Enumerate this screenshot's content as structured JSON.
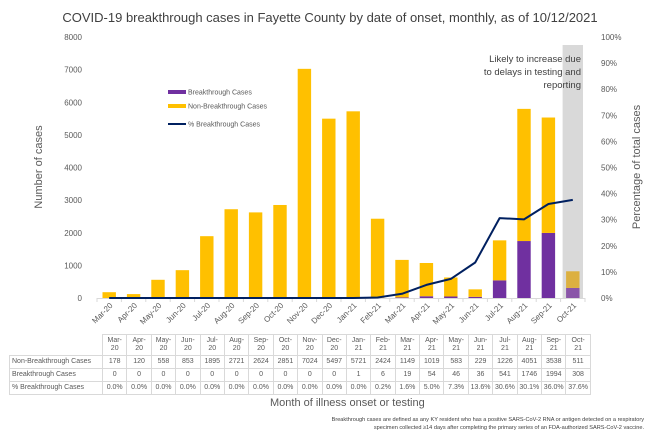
{
  "chart_data": {
    "type": "bar",
    "subtype": "stacked-bar-with-line-secondary-axis",
    "title": "COVID-19 breakthrough cases in Fayette County by date of onset, monthly, as of 10/12/2021",
    "xlabel": "Month of illness onset or testing",
    "ylabel": "Number of cases",
    "y2label": "Percentage of total cases",
    "ylim": [
      0,
      8000
    ],
    "y2lim": [
      0,
      100
    ],
    "yticks": [
      "0",
      "1000",
      "2000",
      "3000",
      "4000",
      "5000",
      "6000",
      "7000",
      "8000"
    ],
    "y2ticks": [
      "0%",
      "10%",
      "20%",
      "30%",
      "40%",
      "50%",
      "60%",
      "70%",
      "80%",
      "90%",
      "100%"
    ],
    "grid": false,
    "legend_position": "upper-left-inside",
    "categories": [
      "Mar-20",
      "Apr-20",
      "May-20",
      "Jun-20",
      "Jul-20",
      "Aug-20",
      "Sep-20",
      "Oct-20",
      "Nov-20",
      "Dec-20",
      "Jan-21",
      "Feb-21",
      "Mar-21",
      "Apr-21",
      "May-21",
      "Jun-21",
      "Jul-21",
      "Aug-21",
      "Sep-21",
      "Oct-21"
    ],
    "table_headers": [
      [
        "Mar-",
        "20"
      ],
      [
        "Apr-",
        "20"
      ],
      [
        "May-",
        "20"
      ],
      [
        "Jun-",
        "20"
      ],
      [
        "Jul-",
        "20"
      ],
      [
        "Aug-",
        "20"
      ],
      [
        "Sep-",
        "20"
      ],
      [
        "Oct-",
        "20"
      ],
      [
        "Nov-",
        "20"
      ],
      [
        "Dec-",
        "20"
      ],
      [
        "Jan-",
        "21"
      ],
      [
        "Feb-",
        "21"
      ],
      [
        "Mar-",
        "21"
      ],
      [
        "Apr-",
        "21"
      ],
      [
        "May-",
        "21"
      ],
      [
        "Jun-",
        "21"
      ],
      [
        "Jul-",
        "21"
      ],
      [
        "Aug-",
        "21"
      ],
      [
        "Sep-",
        "21"
      ],
      [
        "Oct-",
        "21"
      ]
    ],
    "series": [
      {
        "name": "Breakthrough Cases",
        "type": "bar",
        "axis": "left",
        "color": "#7030a0",
        "values": [
          0,
          0,
          0,
          0,
          0,
          0,
          0,
          0,
          0,
          0,
          1,
          6,
          19,
          54,
          46,
          36,
          541,
          1746,
          1994,
          308
        ],
        "labels": [
          "0",
          "0",
          "0",
          "0",
          "0",
          "0",
          "0",
          "0",
          "0",
          "0",
          "1",
          "6",
          "19",
          "54",
          "46",
          "36",
          "541",
          "1746",
          "1994",
          "308"
        ]
      },
      {
        "name": "Non-Breakthrough Cases",
        "type": "bar",
        "axis": "left",
        "color": "#ffc000",
        "values": [
          178,
          120,
          558,
          853,
          1895,
          2721,
          2624,
          2851,
          7024,
          5497,
          5721,
          2424,
          1149,
          1019,
          583,
          229,
          1226,
          4051,
          3538,
          511
        ],
        "labels": [
          "178",
          "120",
          "558",
          "853",
          "1895",
          "2721",
          "2624",
          "2851",
          "7024",
          "5497",
          "5721",
          "2424",
          "1149",
          "1019",
          "583",
          "229",
          "1226",
          "4051",
          "3538",
          "511"
        ]
      },
      {
        "name": "% Breakthrough Cases",
        "type": "line",
        "axis": "right",
        "color": "#002060",
        "values": [
          0,
          0,
          0,
          0,
          0,
          0,
          0,
          0,
          0,
          0,
          0,
          0.2,
          1.6,
          5.0,
          7.3,
          13.6,
          30.6,
          30.1,
          36.0,
          37.6
        ],
        "labels": [
          "0.0%",
          "0.0%",
          "0.0%",
          "0.0%",
          "0.0%",
          "0.0%",
          "0.0%",
          "0.0%",
          "0.0%",
          "0.0%",
          "0.0%",
          "0.2%",
          "1.6%",
          "5.0%",
          "7.3%",
          "13.6%",
          "30.6%",
          "30.1%",
          "36.0%",
          "37.6%"
        ]
      }
    ],
    "table_row_order": [
      "Non-Breakthrough Cases",
      "Breakthrough Cases",
      "% Breakthrough Cases"
    ],
    "table_row_series_index": [
      1,
      0,
      2
    ],
    "highlight": {
      "category": "Oct-21",
      "color": "#d9d9d9"
    },
    "annotation": [
      "Likely to increase due",
      "to delays in testing and",
      "reporting"
    ],
    "footnote": [
      "Breakthrough cases are defined as any KY resident who has a positive SARS-CoV-2 RNA or antigen detected on a respiratory",
      "specimen collected ≥14 days after completing the primary series of an FDA-authorized SARS-CoV-2 vaccine."
    ]
  }
}
